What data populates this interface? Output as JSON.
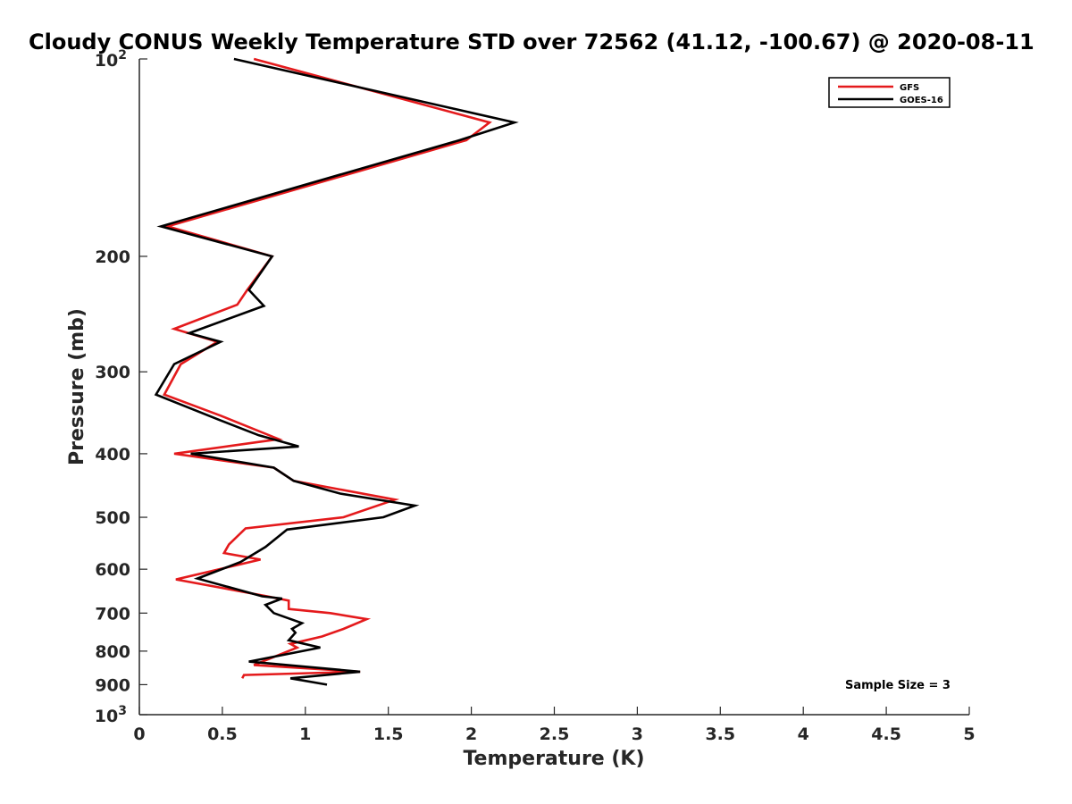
{
  "chart_data": {
    "type": "line",
    "title": "Cloudy CONUS Weekly Temperature STD over 72562 (41.12, -100.67) @ 2020-08-11",
    "xlabel": "Temperature (K)",
    "ylabel": "Pressure (mb)",
    "xlim": [
      0,
      5
    ],
    "ylim": [
      1000,
      100
    ],
    "y_scale": "log-reversed",
    "x_ticks": [
      "0",
      "0.5",
      "1",
      "1.5",
      "2",
      "2.5",
      "3",
      "3.5",
      "4",
      "4.5",
      "5"
    ],
    "y_ticks": [
      {
        "value": 100,
        "base": "10",
        "exp": "2"
      },
      {
        "value": 200,
        "label": "200"
      },
      {
        "value": 300,
        "label": "300"
      },
      {
        "value": 400,
        "label": "400"
      },
      {
        "value": 500,
        "label": "500"
      },
      {
        "value": 600,
        "label": "600"
      },
      {
        "value": 700,
        "label": "700"
      },
      {
        "value": 800,
        "label": "800"
      },
      {
        "value": 900,
        "label": "900"
      },
      {
        "value": 1000,
        "base": "10",
        "exp": "3"
      }
    ],
    "legend_position": "top-right",
    "annotation": "Sample Size = 3",
    "series": [
      {
        "name": "GFS",
        "color": "#e41a1c",
        "x": [
          0.69,
          2.11,
          1.97,
          0.17,
          0.8,
          0.65,
          0.59,
          0.21,
          0.47,
          0.25,
          0.15,
          0.49,
          0.84,
          0.21,
          0.81,
          0.93,
          1.54,
          1.23,
          0.64,
          0.54,
          0.51,
          0.73,
          0.22,
          0.77,
          0.9,
          0.9,
          1.15,
          1.37,
          1.23,
          1.1,
          0.91,
          0.95,
          0.69,
          1.33,
          0.63,
          0.62
        ],
        "y": [
          100,
          125,
          133,
          180,
          200,
          225,
          237,
          258,
          270,
          292,
          325,
          350,
          380,
          400,
          420,
          440,
          470,
          500,
          520,
          550,
          567,
          580,
          622,
          660,
          670,
          690,
          700,
          715,
          740,
          760,
          780,
          790,
          840,
          860,
          870,
          880
        ]
      },
      {
        "name": "GOES-16",
        "color": "#000000",
        "x": [
          0.57,
          2.26,
          1.93,
          0.13,
          0.8,
          0.66,
          0.75,
          0.3,
          0.49,
          0.21,
          0.1,
          0.48,
          0.72,
          0.96,
          0.31,
          0.81,
          0.93,
          1.21,
          1.66,
          1.47,
          0.89,
          0.76,
          0.61,
          0.35,
          0.74,
          0.86,
          0.76,
          0.81,
          0.98,
          0.92,
          0.94,
          0.9,
          1.09,
          0.66,
          1.33,
          0.91,
          1.13
        ],
        "y": [
          100,
          125,
          133,
          180,
          200,
          225,
          238,
          262,
          270,
          292,
          325,
          355,
          375,
          390,
          400,
          420,
          440,
          460,
          480,
          500,
          522,
          555,
          585,
          620,
          660,
          665,
          680,
          700,
          725,
          740,
          750,
          770,
          790,
          830,
          860,
          880,
          900
        ]
      }
    ]
  }
}
